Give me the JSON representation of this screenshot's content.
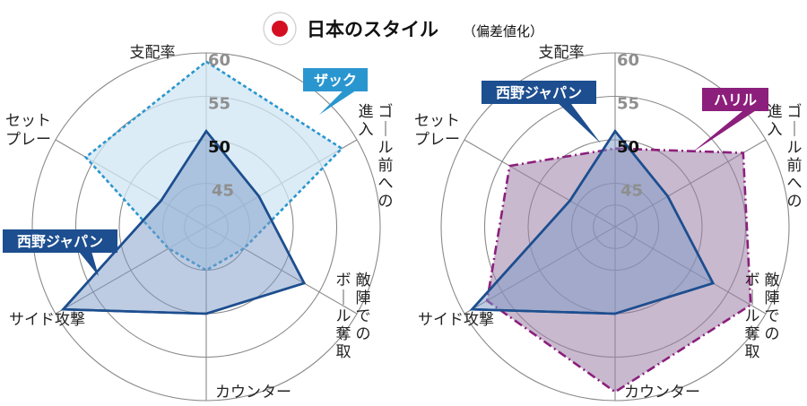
{
  "title": "日本のスタイル",
  "title_note": "（偏差値化）",
  "colors": {
    "japan": "#1d4e8f",
    "japan_fill": "#7c99c6",
    "zac": "#2a96cf",
    "zac_fill": "#cfe6f3",
    "halil": "#8c1f7c",
    "halil_fill": "#9a7fa6",
    "flag_red": "#d40f22",
    "grid": "#8a8a8a"
  },
  "chart_data": [
    {
      "type": "radar",
      "categories": [
        "支配率",
        "ゴール前への進入",
        "敵陣でのボール奪取",
        "カウンター",
        "サイド攻撃",
        "セットプレー"
      ],
      "ticks": [
        45,
        50,
        55,
        60
      ],
      "range": [
        40,
        60
      ],
      "series": [
        {
          "name": "ザック",
          "values": [
            59,
            58,
            45,
            45,
            45,
            56
          ],
          "style": "dashed"
        },
        {
          "name": "西野ジャパン",
          "values": [
            51,
            47,
            53,
            50,
            59,
            46
          ],
          "style": "solid"
        }
      ]
    },
    {
      "type": "radar",
      "categories": [
        "支配率",
        "ゴール前への進入",
        "敵陣でのボール奪取",
        "カウンター",
        "サイド攻撃",
        "セットプレー"
      ],
      "ticks": [
        45,
        50,
        55,
        60
      ],
      "range": [
        40,
        60
      ],
      "series": [
        {
          "name": "ハリル",
          "values": [
            49,
            57,
            58,
            59,
            57,
            54
          ],
          "style": "dashdot"
        },
        {
          "name": "西野ジャパン",
          "values": [
            51,
            47,
            53,
            50,
            59,
            46
          ],
          "style": "solid"
        }
      ]
    }
  ]
}
